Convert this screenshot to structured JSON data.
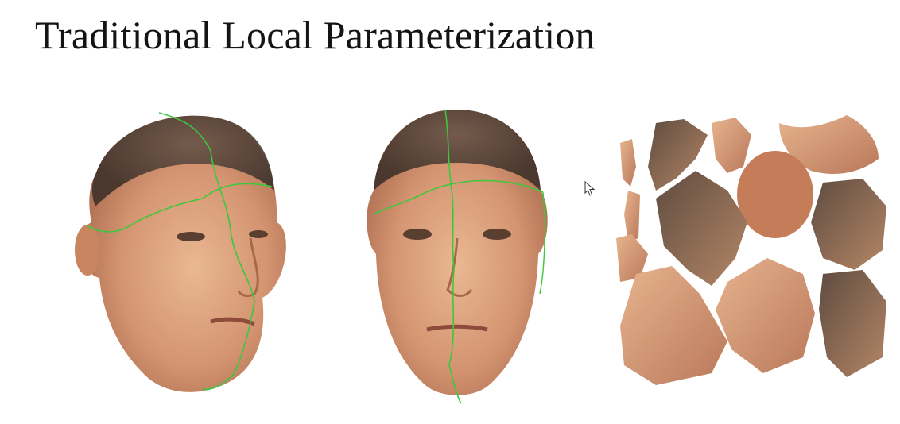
{
  "slide": {
    "title": "Traditional Local Parameterization"
  },
  "figures": [
    {
      "name": "face-3d-side-view-with-seams",
      "seam_color": "#3cc83c"
    },
    {
      "name": "face-3d-front-view-with-seams",
      "seam_color": "#3cc83c"
    },
    {
      "name": "texture-atlas-charts"
    }
  ],
  "colors": {
    "background": "#ffffff",
    "title": "#141414",
    "skin_light": "#e2ad88",
    "skin_mid": "#c98460",
    "skin_dark": "#8a5a42",
    "hair": "#4a3a32",
    "seam": "#3cc83c"
  },
  "icons": [
    "mouse-pointer-icon"
  ]
}
